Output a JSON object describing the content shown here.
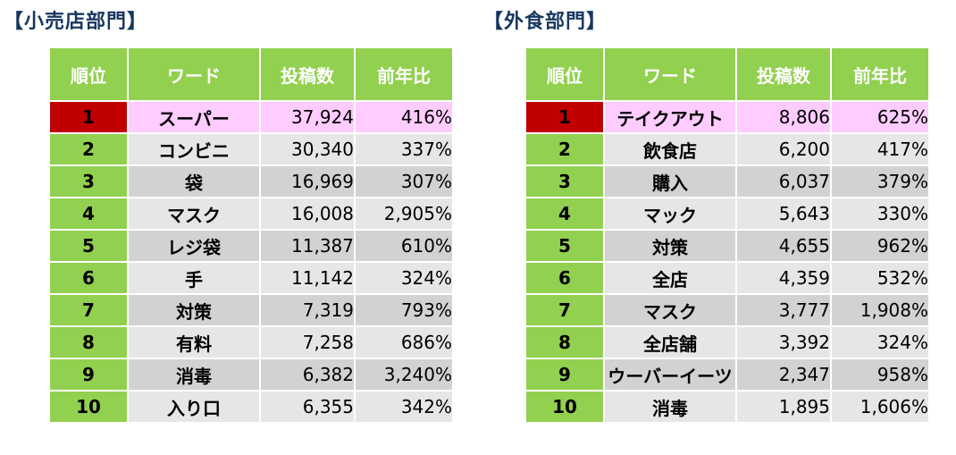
{
  "retail": {
    "title": "【小売店部門】",
    "headers": [
      "順位",
      "ワード",
      "投稿数",
      "前年比"
    ],
    "rows": [
      {
        "rank": "1",
        "word": "スーパー",
        "posts": "37,924",
        "yoy": "416%"
      },
      {
        "rank": "2",
        "word": "コンビニ",
        "posts": "30,340",
        "yoy": "337%"
      },
      {
        "rank": "3",
        "word": "袋",
        "posts": "16,969",
        "yoy": "307%"
      },
      {
        "rank": "4",
        "word": "マスク",
        "posts": "16,008",
        "yoy": "2,905%"
      },
      {
        "rank": "5",
        "word": "レジ袋",
        "posts": "11,387",
        "yoy": "610%"
      },
      {
        "rank": "6",
        "word": "手",
        "posts": "11,142",
        "yoy": "324%"
      },
      {
        "rank": "7",
        "word": "対策",
        "posts": "7,319",
        "yoy": "793%"
      },
      {
        "rank": "8",
        "word": "有料",
        "posts": "7,258",
        "yoy": "686%"
      },
      {
        "rank": "9",
        "word": "消毒",
        "posts": "6,382",
        "yoy": "3,240%"
      },
      {
        "rank": "10",
        "word": "入り口",
        "posts": "6,355",
        "yoy": "342%"
      }
    ]
  },
  "food": {
    "title": "【外食部門】",
    "headers": [
      "順位",
      "ワード",
      "投稿数",
      "前年比"
    ],
    "rows": [
      {
        "rank": "1",
        "word": "テイクアウト",
        "posts": "8,806",
        "yoy": "625%"
      },
      {
        "rank": "2",
        "word": "飲食店",
        "posts": "6,200",
        "yoy": "417%"
      },
      {
        "rank": "3",
        "word": "購入",
        "posts": "6,037",
        "yoy": "379%"
      },
      {
        "rank": "4",
        "word": "マック",
        "posts": "5,643",
        "yoy": "330%"
      },
      {
        "rank": "5",
        "word": "対策",
        "posts": "4,655",
        "yoy": "962%"
      },
      {
        "rank": "6",
        "word": "全店",
        "posts": "4,359",
        "yoy": "532%"
      },
      {
        "rank": "7",
        "word": "マスク",
        "posts": "3,777",
        "yoy": "1,908%"
      },
      {
        "rank": "8",
        "word": "全店舗",
        "posts": "3,392",
        "yoy": "324%"
      },
      {
        "rank": "9",
        "word": "ウーバーイーツ",
        "posts": "2,347",
        "yoy": "958%"
      },
      {
        "rank": "10",
        "word": "消毒",
        "posts": "1,895",
        "yoy": "1,606%"
      }
    ]
  },
  "colors": {
    "header_green": "#92d050",
    "top_rank_red": "#c00000",
    "top_row_pink": "#ffccff",
    "row_light": "#e6e6e6",
    "row_dark": "#d2d2d2",
    "title_navy": "#17375e"
  }
}
